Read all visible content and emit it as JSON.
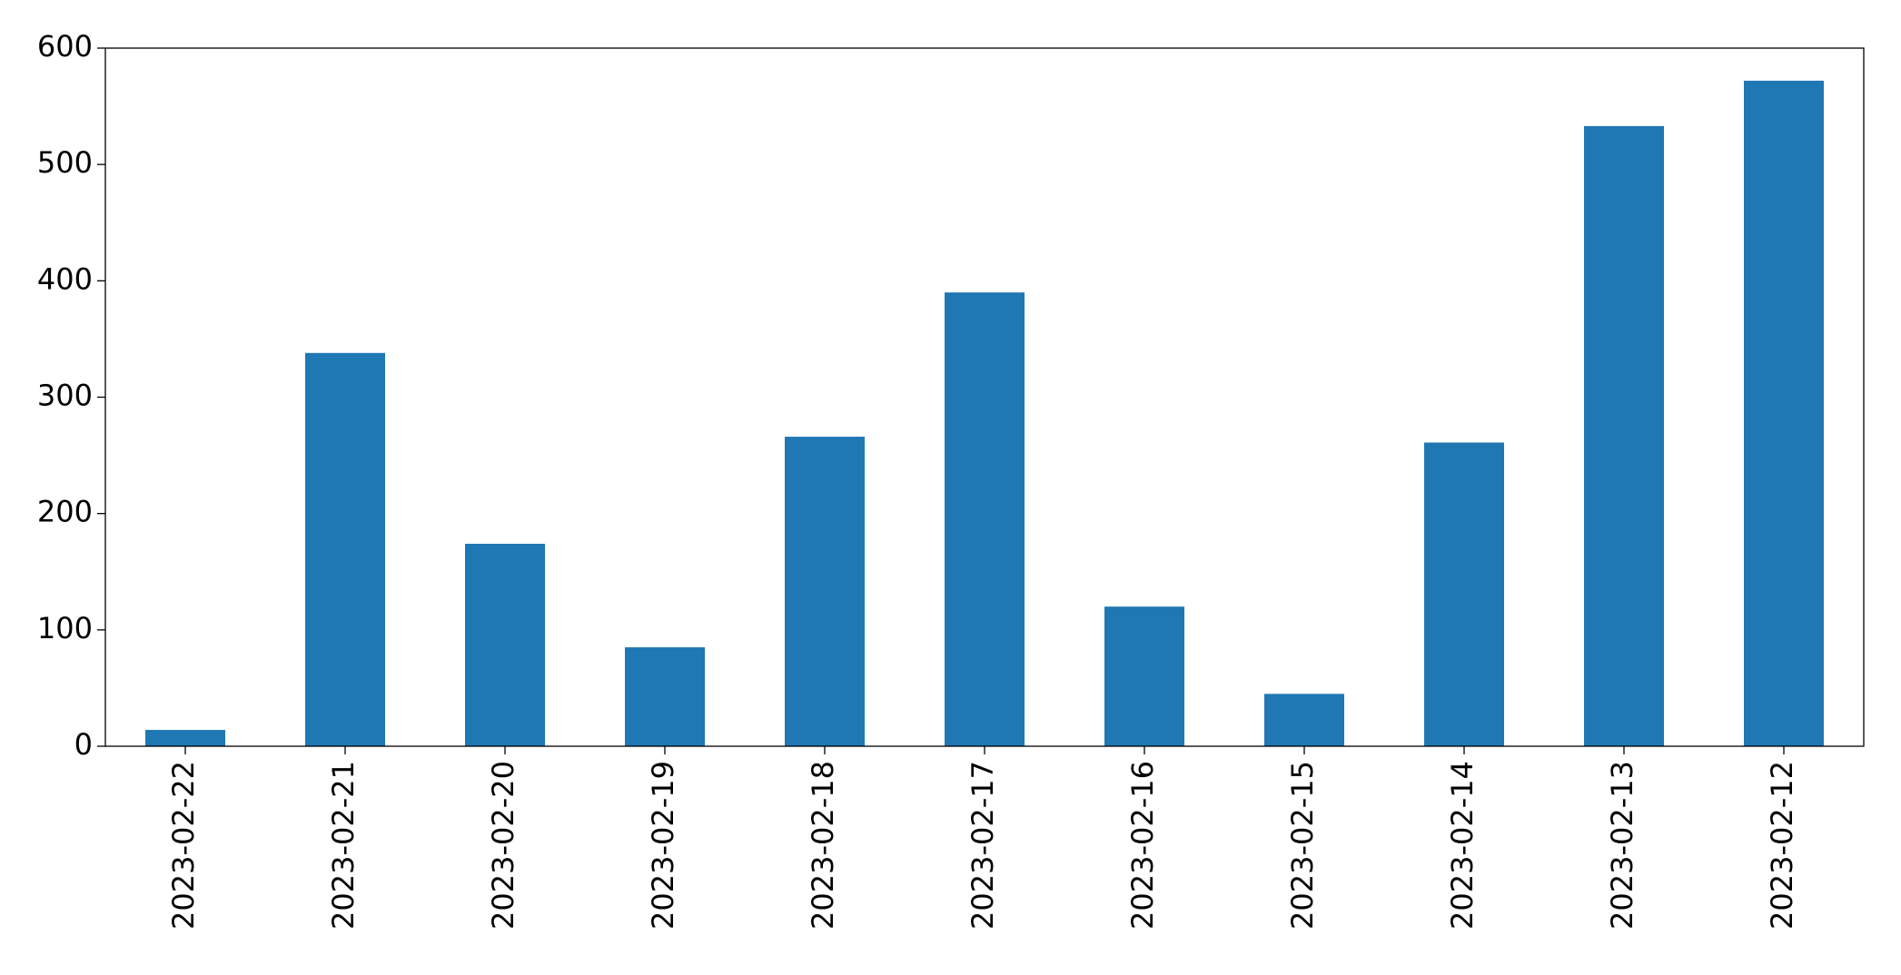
{
  "chart_data": {
    "type": "bar",
    "categories": [
      "2023-02-22",
      "2023-02-21",
      "2023-02-20",
      "2023-02-19",
      "2023-02-18",
      "2023-02-17",
      "2023-02-16",
      "2023-02-15",
      "2023-02-14",
      "2023-02-13",
      "2023-02-12"
    ],
    "values": [
      14,
      338,
      174,
      85,
      266,
      390,
      120,
      45,
      261,
      533,
      572
    ],
    "color": "#1f77b4",
    "ylim": [
      0,
      600
    ],
    "yticks": [
      0,
      100,
      200,
      300,
      400,
      500,
      600
    ],
    "grid": false
  }
}
